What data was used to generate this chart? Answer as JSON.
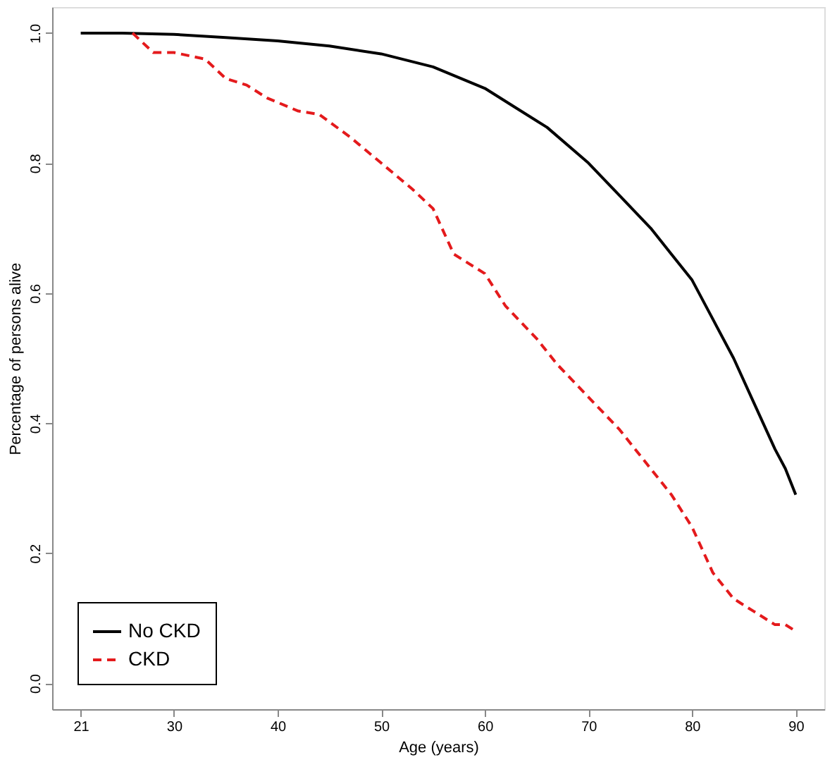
{
  "chart_data": {
    "type": "line",
    "xlabel": "Age (years)",
    "ylabel": "Percentage of persons alive",
    "xlim": [
      18.24,
      92.76
    ],
    "xticks": [
      21,
      30,
      40,
      50,
      60,
      70,
      80,
      90
    ],
    "ylim": [
      -0.04,
      1.04
    ],
    "yticks": [
      {
        "value": 0,
        "label": "0.0"
      },
      0.2,
      0.4,
      0.6,
      0.8,
      {
        "value": 1,
        "label": "1.0"
      }
    ],
    "grid": false,
    "legend": "bottom left",
    "series": [
      {
        "name": "No CKD",
        "color": "#000000",
        "line_style": "solid",
        "x": [
          21,
          25,
          30,
          35,
          40,
          45,
          50,
          55,
          60,
          63,
          66,
          70,
          73,
          76,
          78,
          80,
          82,
          84,
          86,
          88,
          89,
          90
        ],
        "values": [
          1.0,
          1.0,
          0.998,
          0.993,
          0.988,
          0.98,
          0.968,
          0.948,
          0.915,
          0.885,
          0.855,
          0.8,
          0.75,
          0.7,
          0.66,
          0.62,
          0.56,
          0.5,
          0.43,
          0.36,
          0.33,
          0.29
        ]
      },
      {
        "name": "CKD",
        "color": "#e41a1c",
        "line_style": "dashed",
        "x": [
          26,
          28,
          30,
          33,
          35,
          37,
          39,
          42,
          44,
          47,
          50,
          53,
          55,
          57,
          60,
          62,
          65,
          67,
          70,
          73,
          76,
          78,
          80,
          82,
          84,
          86,
          88,
          89,
          90
        ],
        "values": [
          1.0,
          0.97,
          0.97,
          0.96,
          0.93,
          0.92,
          0.9,
          0.88,
          0.875,
          0.84,
          0.8,
          0.76,
          0.73,
          0.66,
          0.63,
          0.58,
          0.53,
          0.49,
          0.44,
          0.39,
          0.33,
          0.29,
          0.24,
          0.17,
          0.13,
          0.11,
          0.09,
          0.09,
          0.08
        ]
      }
    ]
  }
}
